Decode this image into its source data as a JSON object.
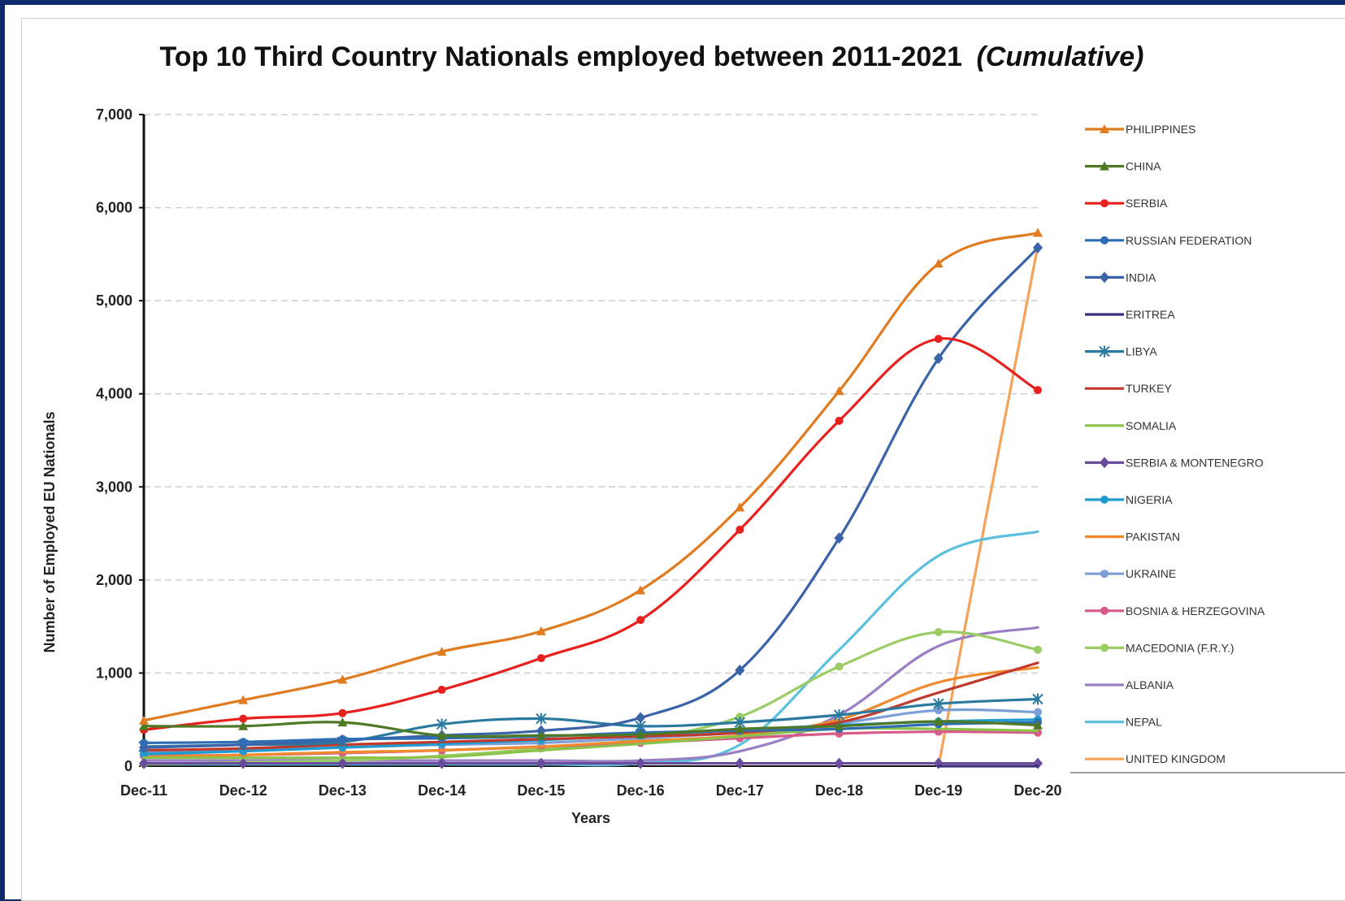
{
  "chart_data": {
    "type": "line",
    "title": "Top 10 Third Country Nationals employed between 2011-2021",
    "title_suffix": "(Cumulative)",
    "xlabel": "Years",
    "ylabel": "Number of Employed EU Nationals",
    "categories": [
      "Dec-11",
      "Dec-12",
      "Dec-13",
      "Dec-14",
      "Dec-15",
      "Dec-16",
      "Dec-17",
      "Dec-18",
      "Dec-19",
      "Dec-20"
    ],
    "ylim": [
      0,
      7000
    ],
    "yticks": [
      0,
      1000,
      2000,
      3000,
      4000,
      5000,
      6000,
      7000
    ],
    "ytick_labels": [
      "0",
      "1,000",
      "2,000",
      "3,000",
      "4,000",
      "5,000",
      "6,000",
      "7,000"
    ],
    "grid": true,
    "legend_position": "right",
    "series": [
      {
        "name": "PHILIPPINES",
        "color": "#e07b1f",
        "marker": "triangle",
        "values": [
          490,
          710,
          930,
          1230,
          1450,
          1890,
          2780,
          4030,
          5400,
          5730
        ]
      },
      {
        "name": "CHINA",
        "color": "#4e7a25",
        "marker": "triangle",
        "values": [
          430,
          430,
          470,
          330,
          330,
          340,
          400,
          430,
          480,
          440
        ]
      },
      {
        "name": "SERBIA",
        "color": "#e8211f",
        "marker": "circle",
        "values": [
          390,
          510,
          570,
          820,
          1160,
          1570,
          2540,
          3710,
          4590,
          4040
        ]
      },
      {
        "name": "RUSSIAN FEDERATION",
        "color": "#2e6db3",
        "marker": "circle",
        "values": [
          250,
          260,
          290,
          300,
          320,
          360,
          380,
          400,
          450,
          470
        ]
      },
      {
        "name": "INDIA",
        "color": "#3a63a8",
        "marker": "diamond",
        "values": [
          200,
          230,
          280,
          330,
          380,
          520,
          1030,
          2450,
          4380,
          5570
        ]
      },
      {
        "name": "ERITREA",
        "color": "#3b2f7a",
        "marker": "none",
        "values": [
          null,
          null,
          null,
          null,
          null,
          null,
          null,
          null,
          0,
          0
        ]
      },
      {
        "name": "LIBYA",
        "color": "#2a7aa0",
        "marker": "x",
        "values": [
          210,
          230,
          260,
          450,
          510,
          430,
          470,
          550,
          670,
          720
        ]
      },
      {
        "name": "TURKEY",
        "color": "#c0392b",
        "marker": "none",
        "values": [
          170,
          190,
          230,
          260,
          290,
          320,
          360,
          470,
          790,
          1110
        ]
      },
      {
        "name": "SOMALIA",
        "color": "#8bc34a",
        "marker": "none",
        "values": [
          90,
          90,
          90,
          100,
          170,
          240,
          320,
          400,
          400,
          380
        ]
      },
      {
        "name": "SERBIA & MONTENEGRO",
        "color": "#6a4c9c",
        "marker": "diamond",
        "values": [
          30,
          30,
          30,
          30,
          30,
          30,
          30,
          30,
          30,
          30
        ]
      },
      {
        "name": "NIGERIA",
        "color": "#1e9ccf",
        "marker": "circle",
        "values": [
          130,
          160,
          200,
          240,
          280,
          330,
          390,
          440,
          480,
          500
        ]
      },
      {
        "name": "PAKISTAN",
        "color": "#f08a2c",
        "marker": "none",
        "values": [
          100,
          120,
          150,
          170,
          210,
          270,
          330,
          500,
          900,
          1060
        ]
      },
      {
        "name": "UKRAINE",
        "color": "#7b9fd6",
        "marker": "circle",
        "values": [
          150,
          170,
          200,
          230,
          250,
          300,
          360,
          460,
          600,
          580
        ]
      },
      {
        "name": "BOSNIA & HERZEGOVINA",
        "color": "#d65a8a",
        "marker": "circle",
        "values": [
          110,
          120,
          140,
          170,
          210,
          250,
          300,
          350,
          370,
          360
        ]
      },
      {
        "name": "MACEDONIA (F.R.Y.)",
        "color": "#9ccc65",
        "marker": "circle",
        "values": [
          20,
          40,
          60,
          110,
          190,
          290,
          530,
          1070,
          1440,
          1250
        ]
      },
      {
        "name": "ALBANIA",
        "color": "#9b7fc4",
        "marker": "none",
        "values": [
          60,
          60,
          60,
          60,
          60,
          60,
          160,
          550,
          1290,
          1490
        ]
      },
      {
        "name": "NEPAL",
        "color": "#5bc0de",
        "marker": "none",
        "values": [
          20,
          20,
          20,
          20,
          20,
          30,
          230,
          1250,
          2260,
          2520
        ]
      },
      {
        "name": "UNITED KINGDOM",
        "color": "#f5a35b",
        "marker": "none",
        "values": [
          null,
          null,
          null,
          null,
          null,
          null,
          null,
          null,
          0,
          5590
        ]
      }
    ]
  }
}
